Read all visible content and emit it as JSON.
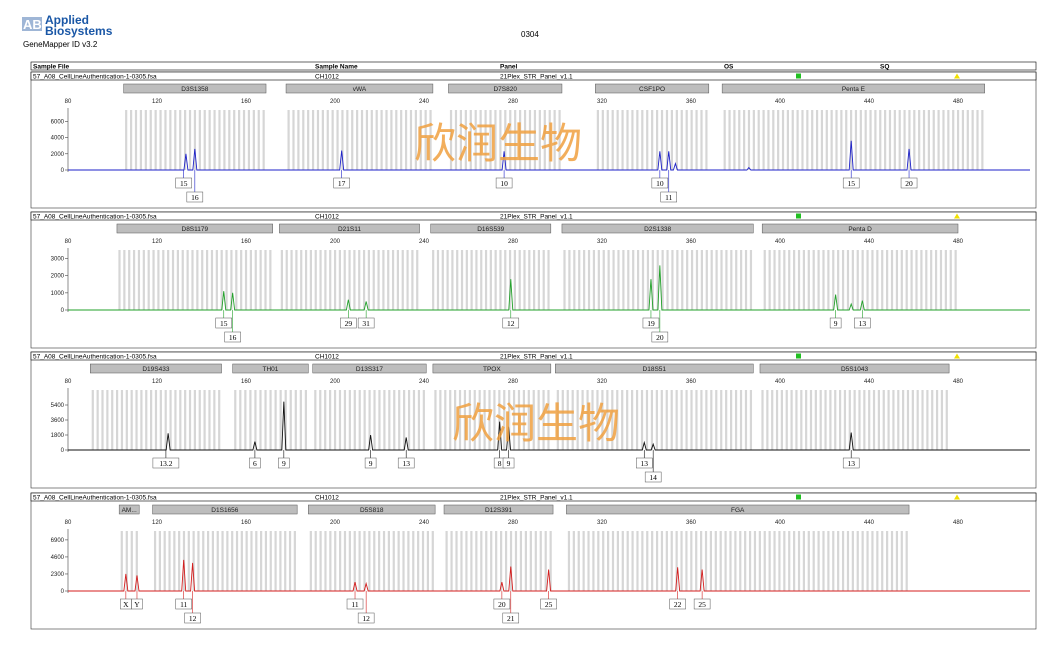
{
  "header": {
    "brand_mark": "AB",
    "brand_line1": "Applied",
    "brand_line2": "Biosystems",
    "app_version": "GeneMapper ID v3.2",
    "doc_title": "0304"
  },
  "columns": {
    "sample_file": "Sample File",
    "sample_name": "Sample Name",
    "panel": "Panel",
    "os": "OS",
    "sq": "SQ"
  },
  "watermark": "欣润生物",
  "colors": {
    "blue": "#1e22c8",
    "green": "#22a02a",
    "black": "#111111",
    "red": "#d41e1e",
    "os_status": "#22c022",
    "sq_status": "#f0e000",
    "locus_bar": "#bdbdbd",
    "bin_stripe": "#d6d6d6",
    "watermark": "#f0a040"
  },
  "x_axis": {
    "min": 80,
    "max": 480,
    "ticks": [
      80,
      120,
      160,
      200,
      240,
      280,
      320,
      360,
      400,
      440,
      480
    ]
  },
  "panels": [
    {
      "dye": "blue",
      "sample_file": "57_A08_CellLineAuthentication-1-0305.fsa",
      "sample_name": "CH1012",
      "panel_name": "21Plex_STR_Panel_v1.1",
      "y_ticks": [
        0,
        2000,
        4000,
        6000
      ],
      "y_max": 7400,
      "loci": [
        {
          "name": "D3S1358",
          "start": 105,
          "end": 169
        },
        {
          "name": "vWA",
          "start": 178,
          "end": 244
        },
        {
          "name": "D7S820",
          "start": 251,
          "end": 302
        },
        {
          "name": "CSF1PO",
          "start": 317,
          "end": 368
        },
        {
          "name": "Penta E",
          "start": 374,
          "end": 492
        }
      ],
      "peaks": [
        {
          "x": 133,
          "h": 2000
        },
        {
          "x": 137,
          "h": 2600
        },
        {
          "x": 203,
          "h": 2400
        },
        {
          "x": 276,
          "h": 2300
        },
        {
          "x": 346,
          "h": 2300
        },
        {
          "x": 350,
          "h": 2300
        },
        {
          "x": 353,
          "h": 800
        },
        {
          "x": 386,
          "h": 300
        },
        {
          "x": 432,
          "h": 3600
        },
        {
          "x": 458,
          "h": 2600
        }
      ],
      "alleles": [
        {
          "label": "15",
          "x": 132,
          "row": 0
        },
        {
          "label": "16",
          "x": 137,
          "row": 1
        },
        {
          "label": "17",
          "x": 203,
          "row": 0
        },
        {
          "label": "10",
          "x": 276,
          "row": 0
        },
        {
          "label": "10",
          "x": 346,
          "row": 0
        },
        {
          "label": "11",
          "x": 350,
          "row": 1
        },
        {
          "label": "15",
          "x": 432,
          "row": 0
        },
        {
          "label": "20",
          "x": 458,
          "row": 0
        }
      ]
    },
    {
      "dye": "green",
      "sample_file": "57_A08_CellLineAuthentication-1-0305.fsa",
      "sample_name": "CH1012",
      "panel_name": "21Plex_STR_Panel_v1.1",
      "y_ticks": [
        0,
        1000,
        2000,
        3000
      ],
      "y_max": 3500,
      "loci": [
        {
          "name": "D8S1179",
          "start": 102,
          "end": 172
        },
        {
          "name": "D21S11",
          "start": 175,
          "end": 238
        },
        {
          "name": "D16S539",
          "start": 243,
          "end": 297
        },
        {
          "name": "D2S1338",
          "start": 302,
          "end": 388
        },
        {
          "name": "Penta D",
          "start": 392,
          "end": 480
        }
      ],
      "peaks": [
        {
          "x": 150,
          "h": 1100
        },
        {
          "x": 154,
          "h": 1000
        },
        {
          "x": 206,
          "h": 600
        },
        {
          "x": 214,
          "h": 500
        },
        {
          "x": 279,
          "h": 1800
        },
        {
          "x": 342,
          "h": 1800
        },
        {
          "x": 346,
          "h": 2600
        },
        {
          "x": 425,
          "h": 900
        },
        {
          "x": 432,
          "h": 350
        },
        {
          "x": 437,
          "h": 550
        }
      ],
      "alleles": [
        {
          "label": "15",
          "x": 150,
          "row": 0
        },
        {
          "label": "16",
          "x": 154,
          "row": 1
        },
        {
          "label": "29",
          "x": 206,
          "row": 0
        },
        {
          "label": "31",
          "x": 214,
          "row": 0
        },
        {
          "label": "12",
          "x": 279,
          "row": 0
        },
        {
          "label": "19",
          "x": 342,
          "row": 0
        },
        {
          "label": "20",
          "x": 346,
          "row": 1
        },
        {
          "label": "9",
          "x": 425,
          "row": 0
        },
        {
          "label": "13",
          "x": 437,
          "row": 0
        }
      ]
    },
    {
      "dye": "black",
      "sample_file": "57_A08_CellLineAuthentication-1-0305.fsa",
      "sample_name": "CH1012",
      "panel_name": "21Plex_STR_Panel_v1.1",
      "y_ticks": [
        0,
        1800,
        3600,
        5400
      ],
      "y_max": 7200,
      "loci": [
        {
          "name": "D19S433",
          "start": 90,
          "end": 149
        },
        {
          "name": "TH01",
          "start": 154,
          "end": 188
        },
        {
          "name": "D13S317",
          "start": 190,
          "end": 241
        },
        {
          "name": "TPOX",
          "start": 244,
          "end": 297
        },
        {
          "name": "D18S51",
          "start": 299,
          "end": 388
        },
        {
          "name": "D5S1043",
          "start": 391,
          "end": 476
        }
      ],
      "peaks": [
        {
          "x": 125,
          "h": 2000
        },
        {
          "x": 164,
          "h": 1000
        },
        {
          "x": 177,
          "h": 5800
        },
        {
          "x": 216,
          "h": 1800
        },
        {
          "x": 232,
          "h": 1500
        },
        {
          "x": 274,
          "h": 3400
        },
        {
          "x": 278,
          "h": 2800
        },
        {
          "x": 339,
          "h": 900
        },
        {
          "x": 343,
          "h": 700
        },
        {
          "x": 432,
          "h": 2100
        }
      ],
      "alleles": [
        {
          "label": "13.2",
          "x": 124,
          "row": 0
        },
        {
          "label": "6",
          "x": 164,
          "row": 0
        },
        {
          "label": "9",
          "x": 177,
          "row": 0
        },
        {
          "label": "9",
          "x": 216,
          "row": 0
        },
        {
          "label": "13",
          "x": 232,
          "row": 0
        },
        {
          "label": "8",
          "x": 274,
          "row": 0
        },
        {
          "label": "9",
          "x": 278,
          "row": 0
        },
        {
          "label": "13",
          "x": 339,
          "row": 0
        },
        {
          "label": "14",
          "x": 343,
          "row": 1
        },
        {
          "label": "13",
          "x": 432,
          "row": 0
        }
      ]
    },
    {
      "dye": "red",
      "sample_file": "57_A08_CellLineAuthentication-1-0305.fsa",
      "sample_name": "CH1012",
      "panel_name": "21Plex_STR_Panel_v1.1",
      "y_ticks": [
        0,
        2300,
        4600,
        6900
      ],
      "y_max": 8100,
      "loci": [
        {
          "name": "AM...",
          "start": 103,
          "end": 112
        },
        {
          "name": "D1S1656",
          "start": 118,
          "end": 183
        },
        {
          "name": "D5S818",
          "start": 188,
          "end": 245
        },
        {
          "name": "D12S391",
          "start": 249,
          "end": 298
        },
        {
          "name": "FGA",
          "start": 304,
          "end": 458
        }
      ],
      "peaks": [
        {
          "x": 106,
          "h": 2300
        },
        {
          "x": 111,
          "h": 2100
        },
        {
          "x": 132,
          "h": 4200
        },
        {
          "x": 136,
          "h": 3800
        },
        {
          "x": 209,
          "h": 1200
        },
        {
          "x": 214,
          "h": 1000
        },
        {
          "x": 275,
          "h": 1200
        },
        {
          "x": 279,
          "h": 3300
        },
        {
          "x": 296,
          "h": 2900
        },
        {
          "x": 354,
          "h": 3200
        },
        {
          "x": 365,
          "h": 2900
        }
      ],
      "alleles": [
        {
          "label": "X",
          "x": 106,
          "row": 0
        },
        {
          "label": "Y",
          "x": 111,
          "row": 0
        },
        {
          "label": "11",
          "x": 132,
          "row": 0
        },
        {
          "label": "12",
          "x": 136,
          "row": 1
        },
        {
          "label": "11",
          "x": 209,
          "row": 0
        },
        {
          "label": "12",
          "x": 214,
          "row": 1
        },
        {
          "label": "20",
          "x": 275,
          "row": 0
        },
        {
          "label": "21",
          "x": 279,
          "row": 1
        },
        {
          "label": "25",
          "x": 296,
          "row": 0
        },
        {
          "label": "22",
          "x": 354,
          "row": 0
        },
        {
          "label": "25",
          "x": 365,
          "row": 0
        }
      ]
    }
  ]
}
